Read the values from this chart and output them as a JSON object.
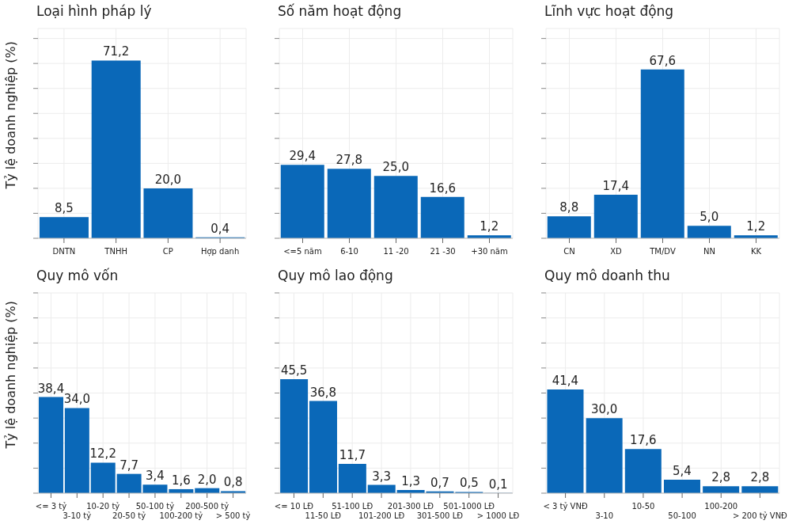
{
  "chart_data": [
    {
      "type": "bar",
      "title": "Loại hình pháp lý",
      "ylabel": "Tỷ lệ doanh nghiệp (%)",
      "categories": [
        "DNTN",
        "TNHH",
        "CP",
        "Hợp danh"
      ],
      "values": [
        8.5,
        71.2,
        20.0,
        0.4
      ],
      "value_labels": [
        "8,5",
        "71,2",
        "20,0",
        "0,4"
      ],
      "color": "#0a68b8",
      "ylim": [
        0,
        84
      ],
      "yticks": [
        0,
        10,
        20,
        30,
        40,
        50,
        60,
        70,
        80
      ],
      "tick_labels": "x",
      "grid": true
    },
    {
      "type": "bar",
      "title": "Số năm hoạt động",
      "categories": [
        "<=5 năm",
        "6-10",
        "11 -20",
        "21 -30",
        "+30 năm"
      ],
      "values": [
        29.4,
        27.8,
        25.0,
        16.6,
        1.2
      ],
      "value_labels": [
        "29,4",
        "27,8",
        "25,0",
        "16,6",
        "1,2"
      ],
      "color": "#0a68b8",
      "ylim": [
        0,
        84
      ],
      "yticks": [
        0,
        10,
        20,
        30,
        40,
        50,
        60,
        70,
        80
      ],
      "tick_labels": "x",
      "grid": true
    },
    {
      "type": "bar",
      "title": "Lĩnh vực hoạt động",
      "categories": [
        "CN",
        "XD",
        "TM/DV",
        "NN",
        "KK"
      ],
      "values": [
        8.8,
        17.4,
        67.6,
        5.0,
        1.2
      ],
      "value_labels": [
        "8,8",
        "17,4",
        "67,6",
        "5,0",
        "1,2"
      ],
      "color": "#0a68b8",
      "ylim": [
        0,
        84
      ],
      "yticks": [
        0,
        10,
        20,
        30,
        40,
        50,
        60,
        70,
        80
      ],
      "tick_labels": "x",
      "grid": true
    },
    {
      "type": "bar",
      "title": "Quy mô vốn",
      "ylabel": "Tỷ lệ doanh nghiệp (%)",
      "categories": [
        "<= 3 tỷ",
        "3-10 tỷ",
        "10-20 tỷ",
        "20-50 tỷ",
        "50-100 tỷ",
        "100-200 tỷ",
        "200-500 tỷ",
        "> 500 tỷ"
      ],
      "values": [
        38.4,
        34.0,
        12.2,
        7.7,
        3.4,
        1.6,
        2.0,
        0.8
      ],
      "value_labels": [
        "38,4",
        "34,0",
        "12,2",
        "7,7",
        "3,4",
        "1,6",
        "2,0",
        "0,8"
      ],
      "color": "#0a68b8",
      "ylim": [
        0,
        80
      ],
      "yticks": [
        0,
        10,
        20,
        30,
        40,
        50,
        60,
        70,
        80
      ],
      "tick_labels": "x",
      "grid": true
    },
    {
      "type": "bar",
      "title": "Quy mô lao động",
      "categories": [
        "<= 10 LĐ",
        "11-50 LĐ",
        "51-100 LĐ",
        "101-200 LĐ",
        "201-300 LĐ",
        "301-500 LĐ",
        "501-1000 LĐ",
        "> 1000 LĐ"
      ],
      "values": [
        45.5,
        36.8,
        11.7,
        3.3,
        1.3,
        0.7,
        0.5,
        0.1
      ],
      "value_labels": [
        "45,5",
        "36,8",
        "11,7",
        "3,3",
        "1,3",
        "0,7",
        "0,5",
        "0,1"
      ],
      "color": "#0a68b8",
      "ylim": [
        0,
        80
      ],
      "yticks": [
        0,
        10,
        20,
        30,
        40,
        50,
        60,
        70,
        80
      ],
      "tick_labels": "x",
      "grid": true
    },
    {
      "type": "bar",
      "title": "Quy mô doanh thu",
      "categories": [
        "< 3 tỷ VNĐ",
        "3-10",
        "10-50",
        "50-100",
        "100-200",
        "> 200 tỷ VNĐ"
      ],
      "values": [
        41.4,
        30.0,
        17.6,
        5.4,
        2.8,
        2.8
      ],
      "value_labels": [
        "41,4",
        "30,0",
        "17,6",
        "5,4",
        "2,8",
        "2,8"
      ],
      "color": "#0a68b8",
      "ylim": [
        0,
        80
      ],
      "yticks": [
        0,
        10,
        20,
        30,
        40,
        50,
        60,
        70,
        80
      ],
      "tick_labels": "x",
      "grid": true
    }
  ]
}
